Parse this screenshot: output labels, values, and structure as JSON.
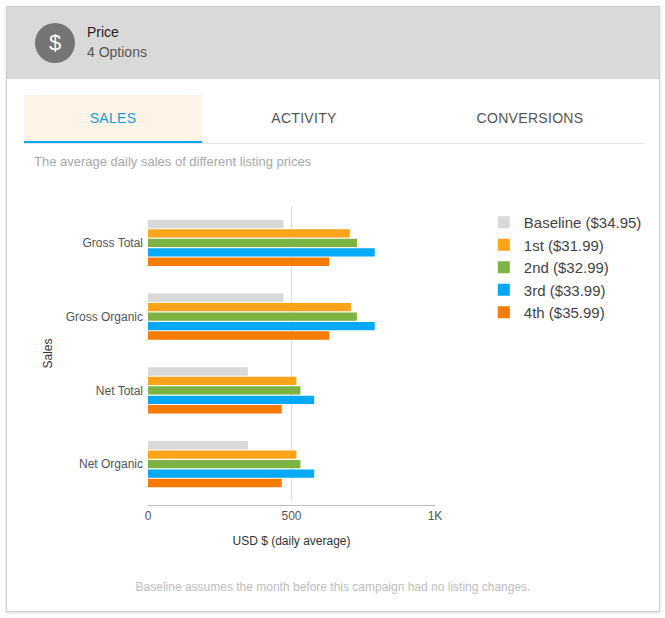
{
  "header": {
    "icon": "$",
    "title": "Price",
    "subtitle": "4 Options"
  },
  "tabs": [
    "SALES",
    "ACTIVITY",
    "CONVERSIONS"
  ],
  "active_tab": "SALES",
  "chart_data": {
    "type": "bar",
    "orientation": "horizontal",
    "subtitle": "The average daily sales of different listing prices",
    "footnote": "Baseline assumes the month before this campaign had no listing changes.",
    "x_label": "USD $ (daily average)",
    "y_label": "Sales",
    "categories": [
      "Gross Total",
      "Gross Organic",
      "Net Total",
      "Net Organic"
    ],
    "series": [
      {
        "name": "Baseline ($34.95)",
        "color": "#d9d9d9",
        "values": [
          472,
          472,
          348,
          348
        ]
      },
      {
        "name": "1st ($31.99)",
        "color": "#ffa31a",
        "values": [
          703,
          707,
          517,
          517
        ]
      },
      {
        "name": "2nd ($32.99)",
        "color": "#7cb342",
        "values": [
          728,
          728,
          531,
          531
        ]
      },
      {
        "name": "3rd ($33.99)",
        "color": "#03a9f4",
        "values": [
          790,
          790,
          579,
          579
        ]
      },
      {
        "name": "4th ($35.99)",
        "color": "#f57c00",
        "values": [
          631,
          631,
          466,
          466
        ]
      }
    ],
    "xlim": [
      0,
      1000
    ],
    "xticks": [
      0,
      500,
      {
        "value": 1000,
        "label": "1K"
      }
    ],
    "grid": true,
    "legend": "right"
  }
}
